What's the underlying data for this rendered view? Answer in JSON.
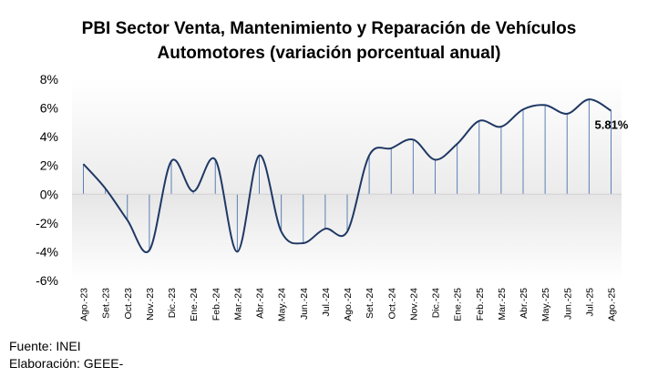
{
  "chart_data": {
    "type": "line",
    "title_line1": "PBI Sector Venta, Mantenimiento y Reparación de Vehículos",
    "title_line2": "Automotores (variación porcentual anual)",
    "xlabel": "",
    "ylabel": "",
    "ylim": [
      -6,
      8
    ],
    "yticks": [
      8,
      6,
      4,
      2,
      0,
      -2,
      -4,
      -6
    ],
    "ytick_labels": [
      "8%",
      "6%",
      "4%",
      "2%",
      "0%",
      "-2%",
      "-4%",
      "-6%"
    ],
    "categories": [
      "Ago.-23",
      "Set.-23",
      "Oct.-23",
      "Nov.-23",
      "Dic.-23",
      "Ene.-24",
      "Feb.-24",
      "Mar.-24",
      "Abr.-24",
      "May.-24",
      "Jun.-24",
      "Jul.-24",
      "Ago.-24",
      "Set.-24",
      "Oct.-24",
      "Nov.-24",
      "Dic.-24",
      "Ene.-25",
      "Feb.-25",
      "Mar.-25",
      "Abr.-25",
      "May.-25",
      "Jun.-25",
      "Jul.-25",
      "Ago.-25"
    ],
    "series": [
      {
        "name": "PBI Sector Venta, Mantenimiento y Reparación de Vehículos Automotores",
        "color": "#1f3864",
        "values": [
          2.1,
          0.4,
          -1.8,
          -3.9,
          2.3,
          0.2,
          2.4,
          -4.0,
          2.7,
          -2.6,
          -3.4,
          -2.4,
          -2.6,
          2.7,
          3.2,
          3.8,
          2.4,
          3.5,
          5.1,
          4.7,
          5.9,
          6.2,
          5.6,
          6.6,
          5.81
        ]
      }
    ],
    "annotation": "5.81%",
    "grid": false,
    "legend": "none",
    "colors": {
      "line": "#1f3864",
      "drop_line": "#5b7fb5",
      "axis": "#d0d0d0"
    }
  },
  "footer": {
    "source": "Fuente: INEI",
    "elaboration": "Elaboración: GEEE-"
  }
}
